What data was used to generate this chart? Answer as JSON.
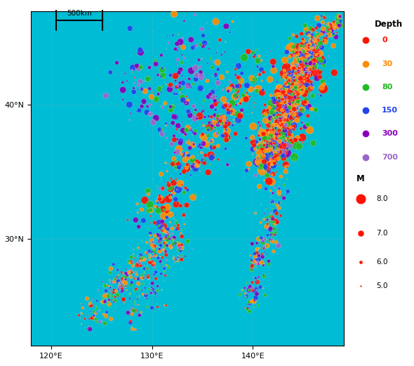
{
  "lon_min": 118,
  "lon_max": 149,
  "lat_min": 22,
  "lat_max": 47,
  "ocean_color": "#00BCD4",
  "land_color": "#1A7A1A",
  "depth_labels": [
    "0",
    "30",
    "80",
    "150",
    "300",
    "700"
  ],
  "depth_colors_list": [
    "#FF1100",
    "#FF8C00",
    "#22BB22",
    "#2244EE",
    "#8800BB",
    "#9966CC"
  ],
  "depth_text_colors": [
    "#FF1100",
    "#FF8C00",
    "#22BB22",
    "#2244EE",
    "#8800BB",
    "#9966CC"
  ],
  "xtick_vals": [
    120,
    130,
    140
  ],
  "ytick_vals": [
    30,
    40
  ],
  "scalebar_label": "500km"
}
